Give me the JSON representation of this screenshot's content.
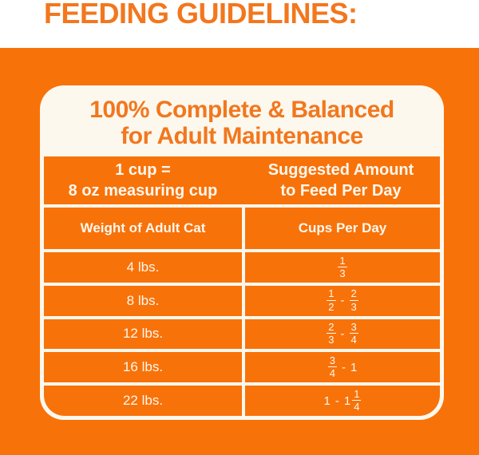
{
  "colors": {
    "orange_bg": "#F8720A",
    "orange_text": "#F2771E",
    "cream": "#FDF8EE"
  },
  "page": {
    "heading": "FEEDING GUIDELINES:"
  },
  "card": {
    "title_line1": "100% Complete & Balanced",
    "title_line2": "for Adult Maintenance",
    "cup_equivalence_line1": "1 cup =",
    "cup_equivalence_line2": "8 oz measuring cup",
    "suggested_amount_line1": "Suggested Amount",
    "suggested_amount_line2": "to Feed Per Day",
    "column_headers": {
      "weight": "Weight of Adult Cat",
      "cups": "Cups Per Day"
    },
    "rows": [
      {
        "weight": "4 lbs.",
        "cups_tokens": [
          {
            "frac": [
              "1",
              "3"
            ]
          }
        ]
      },
      {
        "weight": "8 lbs.",
        "cups_tokens": [
          {
            "frac": [
              "1",
              "2"
            ]
          },
          {
            "dash": "-"
          },
          {
            "frac": [
              "2",
              "3"
            ]
          }
        ]
      },
      {
        "weight": "12 lbs.",
        "cups_tokens": [
          {
            "frac": [
              "2",
              "3"
            ]
          },
          {
            "dash": "-"
          },
          {
            "frac": [
              "3",
              "4"
            ]
          }
        ]
      },
      {
        "weight": "16 lbs.",
        "cups_tokens": [
          {
            "frac": [
              "3",
              "4"
            ]
          },
          {
            "dash": "-"
          },
          {
            "text": "1"
          }
        ]
      },
      {
        "weight": "22 lbs.",
        "cups_tokens": [
          {
            "text": "1"
          },
          {
            "dash": "-"
          },
          {
            "text": "1"
          },
          {
            "frac": [
              "1",
              "4"
            ]
          }
        ]
      }
    ]
  }
}
